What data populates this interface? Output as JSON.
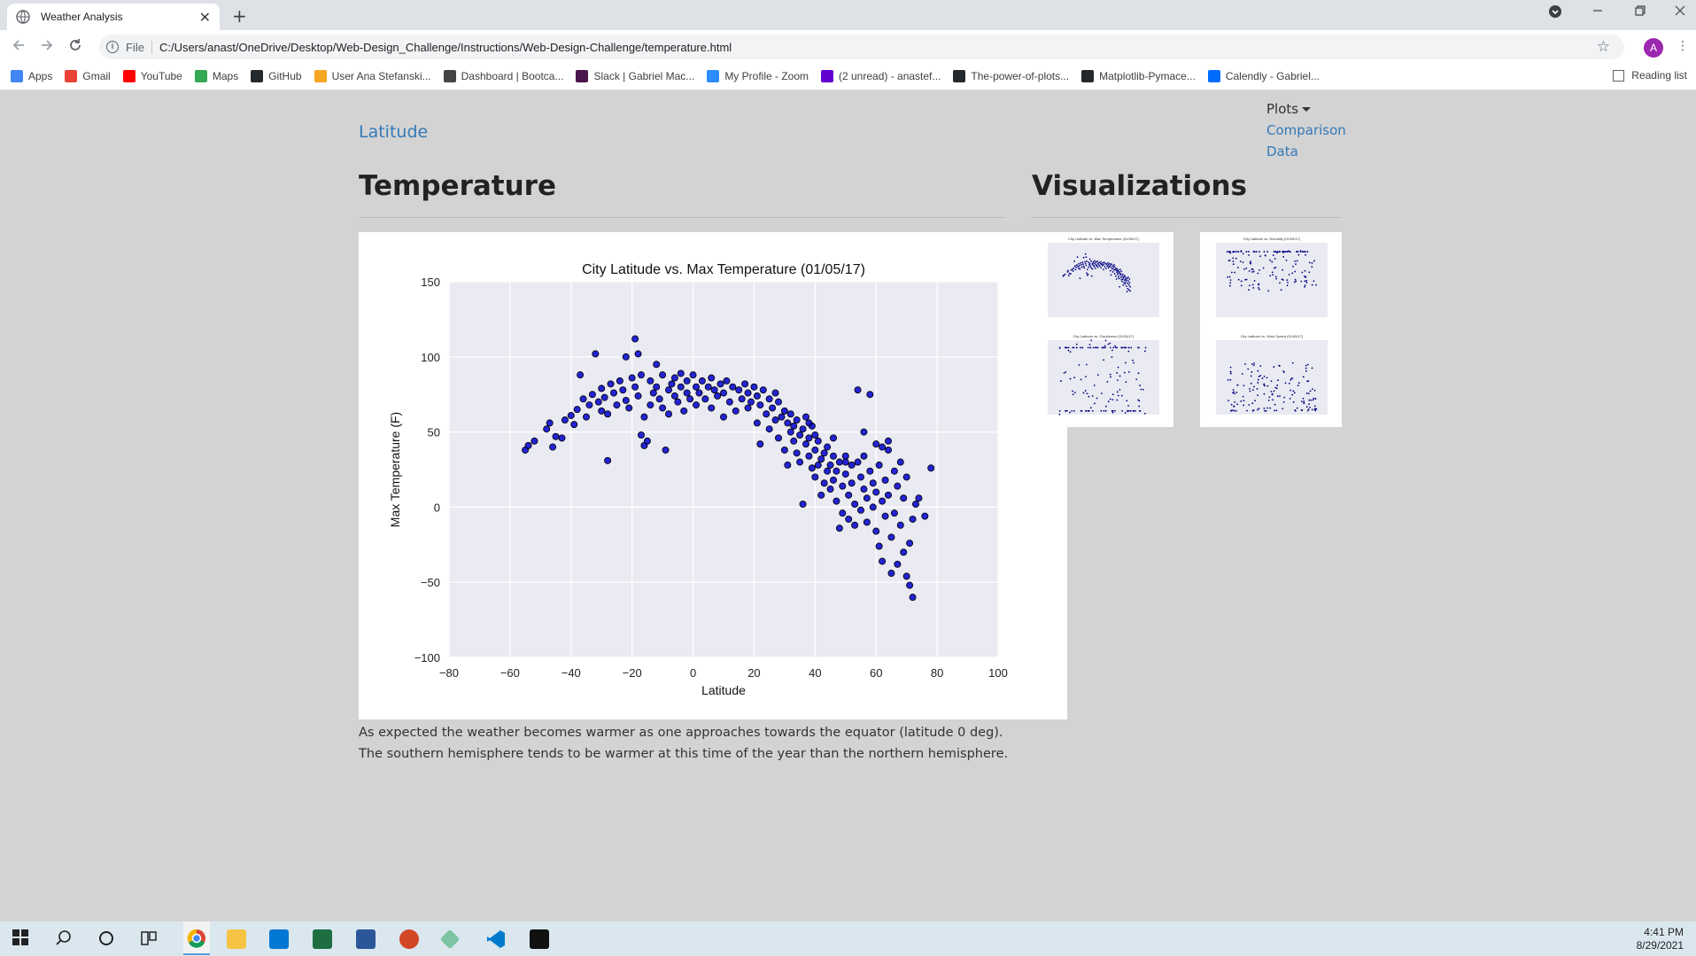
{
  "browser": {
    "tab_title": "Weather Analysis",
    "tab_close": "✕",
    "new_tab": "+",
    "file_label": "File",
    "url": "C:/Users/anast/OneDrive/Desktop/Web-Design_Challenge/Instructions/Web-Design-Challenge/temperature.html",
    "avatar_letter": "A",
    "reading_list": "Reading list",
    "bookmarks": [
      {
        "label": "Apps",
        "color": "#4285f4"
      },
      {
        "label": "Gmail",
        "color": "#ea4335"
      },
      {
        "label": "YouTube",
        "color": "#ff0000"
      },
      {
        "label": "Maps",
        "color": "#34a853"
      },
      {
        "label": "GitHub",
        "color": "#24292e"
      },
      {
        "label": "User Ana Stefanski...",
        "color": "#f5a623"
      },
      {
        "label": "Dashboard | Bootca...",
        "color": "#444444"
      },
      {
        "label": "Slack | Gabriel Mac...",
        "color": "#4a154b"
      },
      {
        "label": "My Profile - Zoom",
        "color": "#2d8cff"
      },
      {
        "label": "(2 unread) - anastef...",
        "color": "#6001d2"
      },
      {
        "label": "The-power-of-plots...",
        "color": "#24292e"
      },
      {
        "label": "Matplotlib-Pymace...",
        "color": "#24292e"
      },
      {
        "label": "Calendly - Gabriel...",
        "color": "#006bff"
      }
    ]
  },
  "page": {
    "brand": "Latitude",
    "nav": {
      "dropdown": "Plots",
      "links": [
        "Comparison",
        "Data"
      ]
    },
    "heading": "Temperature",
    "side_heading": "Visualizations",
    "description": "As expected the weather becomes warmer as one approaches towards the equator (latitude 0 deg). The southern hemisphere tends to be warmer at this time of the year than the northern hemisphere."
  },
  "taskbar": {
    "time": "4:41 PM",
    "date": "8/29/2021"
  },
  "chart_data": {
    "type": "scatter",
    "title": "City Latitude vs. Max Temperature (01/05/17)",
    "xlabel": "Latitude",
    "ylabel": "Max Temperature (F)",
    "xlim": [
      -80,
      100
    ],
    "ylim": [
      -100,
      150
    ],
    "xticks": [
      -80,
      -60,
      -40,
      -20,
      0,
      20,
      40,
      60,
      80,
      100
    ],
    "yticks": [
      -100,
      -50,
      0,
      50,
      100,
      150
    ],
    "grid": true,
    "point_color": "#0000cc",
    "points": [
      [
        -55,
        38
      ],
      [
        -54,
        41
      ],
      [
        -52,
        44
      ],
      [
        -48,
        52
      ],
      [
        -47,
        56
      ],
      [
        -46,
        40
      ],
      [
        -45,
        47
      ],
      [
        -43,
        46
      ],
      [
        -42,
        58
      ],
      [
        -40,
        61
      ],
      [
        -39,
        55
      ],
      [
        -38,
        65
      ],
      [
        -37,
        88
      ],
      [
        -36,
        72
      ],
      [
        -35,
        60
      ],
      [
        -34,
        68
      ],
      [
        -33,
        75
      ],
      [
        -32,
        102
      ],
      [
        -31,
        70
      ],
      [
        -30,
        64
      ],
      [
        -30,
        79
      ],
      [
        -29,
        73
      ],
      [
        -28,
        31
      ],
      [
        -28,
        62
      ],
      [
        -27,
        82
      ],
      [
        -26,
        76
      ],
      [
        -25,
        68
      ],
      [
        -24,
        84
      ],
      [
        -23,
        78
      ],
      [
        -22,
        100
      ],
      [
        -22,
        71
      ],
      [
        -21,
        66
      ],
      [
        -20,
        86
      ],
      [
        -19,
        112
      ],
      [
        -19,
        80
      ],
      [
        -18,
        102
      ],
      [
        -18,
        74
      ],
      [
        -17,
        48
      ],
      [
        -17,
        88
      ],
      [
        -16,
        41
      ],
      [
        -16,
        60
      ],
      [
        -15,
        44
      ],
      [
        -14,
        84
      ],
      [
        -14,
        68
      ],
      [
        -13,
        76
      ],
      [
        -12,
        95
      ],
      [
        -12,
        80
      ],
      [
        -11,
        72
      ],
      [
        -10,
        66
      ],
      [
        -10,
        88
      ],
      [
        -9,
        38
      ],
      [
        -8,
        78
      ],
      [
        -8,
        62
      ],
      [
        -7,
        82
      ],
      [
        -6,
        86
      ],
      [
        -6,
        74
      ],
      [
        -5,
        70
      ],
      [
        -4,
        80
      ],
      [
        -4,
        89
      ],
      [
        -3,
        64
      ],
      [
        -2,
        76
      ],
      [
        -2,
        84
      ],
      [
        -1,
        72
      ],
      [
        0,
        88
      ],
      [
        1,
        80
      ],
      [
        1,
        68
      ],
      [
        2,
        76
      ],
      [
        3,
        84
      ],
      [
        4,
        72
      ],
      [
        5,
        80
      ],
      [
        6,
        86
      ],
      [
        6,
        66
      ],
      [
        7,
        78
      ],
      [
        8,
        74
      ],
      [
        9,
        82
      ],
      [
        10,
        60
      ],
      [
        10,
        76
      ],
      [
        11,
        84
      ],
      [
        12,
        70
      ],
      [
        13,
        80
      ],
      [
        14,
        64
      ],
      [
        15,
        78
      ],
      [
        16,
        72
      ],
      [
        17,
        82
      ],
      [
        18,
        66
      ],
      [
        18,
        76
      ],
      [
        19,
        70
      ],
      [
        20,
        80
      ],
      [
        21,
        56
      ],
      [
        21,
        74
      ],
      [
        22,
        68
      ],
      [
        22,
        42
      ],
      [
        23,
        78
      ],
      [
        24,
        62
      ],
      [
        25,
        72
      ],
      [
        25,
        52
      ],
      [
        26,
        66
      ],
      [
        27,
        76
      ],
      [
        27,
        58
      ],
      [
        28,
        70
      ],
      [
        28,
        46
      ],
      [
        29,
        60
      ],
      [
        30,
        64
      ],
      [
        30,
        38
      ],
      [
        31,
        56
      ],
      [
        31,
        28
      ],
      [
        32,
        50
      ],
      [
        32,
        62
      ],
      [
        33,
        44
      ],
      [
        33,
        54
      ],
      [
        34,
        58
      ],
      [
        34,
        36
      ],
      [
        35,
        48
      ],
      [
        35,
        30
      ],
      [
        36,
        2
      ],
      [
        36,
        52
      ],
      [
        37,
        42
      ],
      [
        37,
        60
      ],
      [
        38,
        34
      ],
      [
        38,
        46
      ],
      [
        39,
        26
      ],
      [
        39,
        54
      ],
      [
        40,
        38
      ],
      [
        40,
        20
      ],
      [
        41,
        44
      ],
      [
        41,
        28
      ],
      [
        42,
        32
      ],
      [
        42,
        8
      ],
      [
        43,
        36
      ],
      [
        43,
        16
      ],
      [
        44,
        24
      ],
      [
        44,
        40
      ],
      [
        45,
        28
      ],
      [
        45,
        12
      ],
      [
        46,
        18
      ],
      [
        46,
        34
      ],
      [
        47,
        4
      ],
      [
        47,
        24
      ],
      [
        48,
        -14
      ],
      [
        48,
        30
      ],
      [
        49,
        14
      ],
      [
        49,
        -4
      ],
      [
        50,
        22
      ],
      [
        50,
        34
      ],
      [
        51,
        8
      ],
      [
        51,
        -8
      ],
      [
        52,
        28
      ],
      [
        52,
        16
      ],
      [
        53,
        2
      ],
      [
        53,
        -12
      ],
      [
        54,
        78
      ],
      [
        54,
        30
      ],
      [
        55,
        20
      ],
      [
        55,
        -2
      ],
      [
        56,
        12
      ],
      [
        56,
        34
      ],
      [
        57,
        6
      ],
      [
        57,
        -10
      ],
      [
        58,
        75
      ],
      [
        58,
        24
      ],
      [
        59,
        0
      ],
      [
        59,
        16
      ],
      [
        60,
        -16
      ],
      [
        60,
        10
      ],
      [
        61,
        -26
      ],
      [
        61,
        28
      ],
      [
        62,
        4
      ],
      [
        62,
        -36
      ],
      [
        63,
        18
      ],
      [
        63,
        -6
      ],
      [
        64,
        38
      ],
      [
        64,
        8
      ],
      [
        65,
        -20
      ],
      [
        65,
        -44
      ],
      [
        66,
        24
      ],
      [
        66,
        -4
      ],
      [
        67,
        14
      ],
      [
        67,
        -38
      ],
      [
        68,
        30
      ],
      [
        68,
        -12
      ],
      [
        69,
        -30
      ],
      [
        69,
        6
      ],
      [
        70,
        -46
      ],
      [
        70,
        20
      ],
      [
        71,
        -24
      ],
      [
        71,
        -52
      ],
      [
        72,
        -8
      ],
      [
        72,
        -60
      ],
      [
        73,
        2
      ],
      [
        74,
        6
      ],
      [
        76,
        -6
      ],
      [
        78,
        26
      ],
      [
        60,
        42
      ],
      [
        62,
        40
      ],
      [
        64,
        44
      ],
      [
        56,
        50
      ],
      [
        50,
        30
      ],
      [
        46,
        46
      ],
      [
        40,
        48
      ],
      [
        38,
        56
      ]
    ]
  },
  "thumbnails": [
    {
      "title": "City Latitude vs. Max Temperature (01/05/17)",
      "kind": "temp"
    },
    {
      "title": "City Latitude vs. Humidity (01/05/17)",
      "kind": "humidity"
    },
    {
      "title": "City Latitude vs. Cloudiness (01/05/17)",
      "kind": "cloud"
    },
    {
      "title": "City Latitude vs. Wind Speed (01/05/17)",
      "kind": "wind"
    }
  ]
}
